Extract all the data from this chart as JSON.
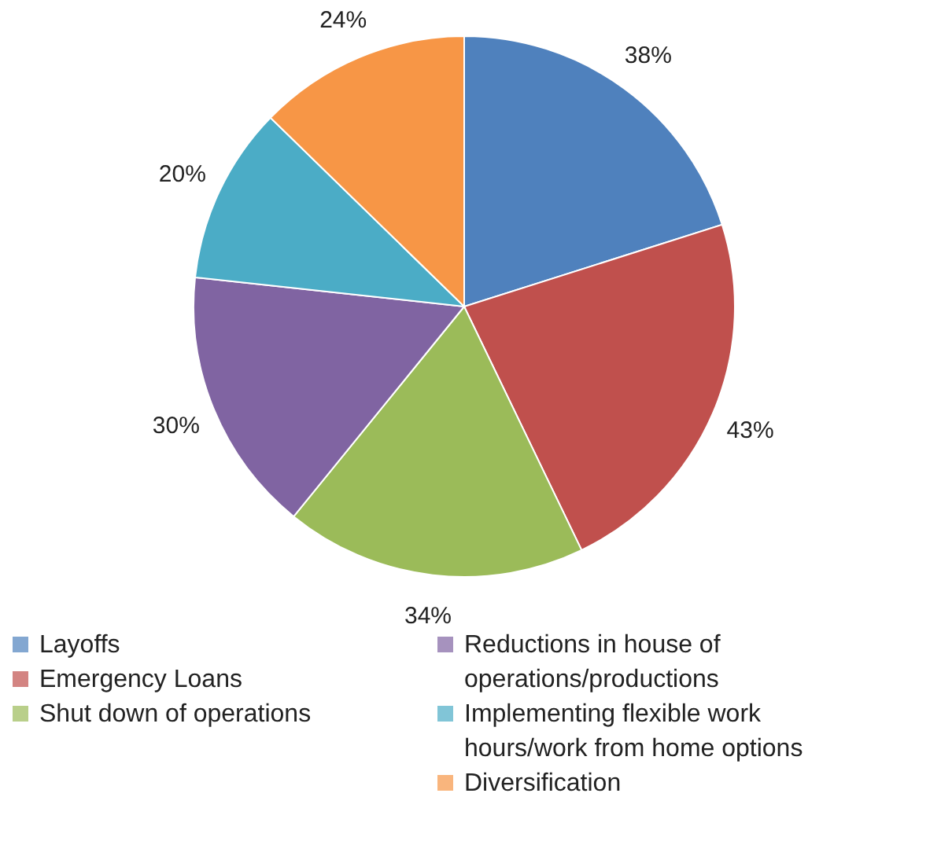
{
  "chart_data": {
    "type": "pie",
    "categories": [
      "Layoffs",
      "Emergency Loans",
      "Shut down of operations",
      "Reductions in house of operations/productions",
      "Implementing flexible work hours/work from home options",
      "Diversification"
    ],
    "values": [
      38,
      43,
      34,
      30,
      20,
      24
    ],
    "value_labels": [
      "38%",
      "43%",
      "34%",
      "30%",
      "20%",
      "24%"
    ],
    "colors": [
      "#4f81bd",
      "#c0504d",
      "#9bbb59",
      "#8064a2",
      "#4bacc6",
      "#f79646"
    ],
    "legend": "bottom"
  }
}
